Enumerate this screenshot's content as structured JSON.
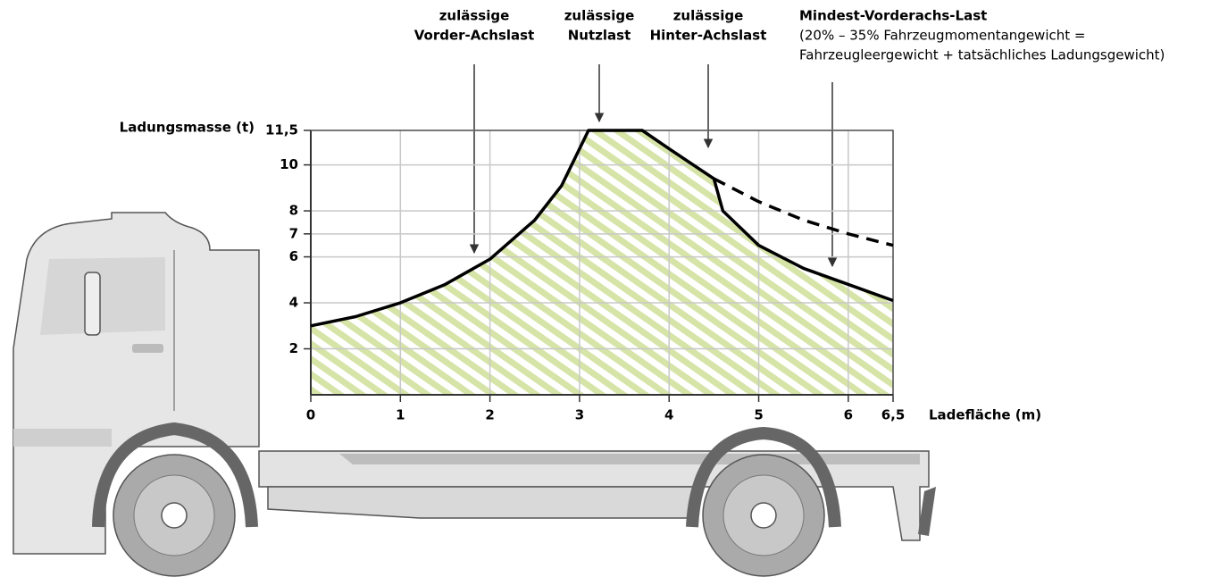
{
  "chart_data": {
    "type": "line",
    "x_label": "Ladefläche (m)",
    "y_label": "Ladungsmasse (t)",
    "xlim": [
      0,
      6.5
    ],
    "ylim": [
      0,
      11.5
    ],
    "xticks": [
      0,
      1,
      2,
      3,
      4,
      5,
      6,
      {
        "value": 6.5,
        "label": "6,5"
      }
    ],
    "yticks": [
      2,
      4,
      6,
      7,
      8,
      10,
      {
        "value": 11.5,
        "label": "11,5"
      }
    ],
    "grid": true,
    "fill_color": "#d6e4a8",
    "series": [
      {
        "color": "#000000",
        "style": "solid",
        "x": [
          0,
          0.5,
          1,
          1.5,
          2,
          2.5,
          2.8,
          3.1,
          3.7,
          4,
          4.5,
          4.6,
          5,
          5.5,
          6,
          6.5
        ],
        "values": [
          3,
          3.4,
          4,
          4.8,
          5.9,
          7.6,
          9.1,
          11.5,
          11.5,
          10.7,
          9.4,
          8,
          6.5,
          5.5,
          4.8,
          4.1
        ]
      },
      {
        "color": "#000000",
        "style": "dashed",
        "x": [
          4.5,
          5,
          5.5,
          6,
          6.5
        ],
        "values": [
          9.4,
          8.4,
          7.6,
          7,
          6.5
        ]
      }
    ],
    "annotations": [
      {
        "lines": [
          "zulässige",
          "Vorder-Achslast"
        ]
      },
      {
        "lines": [
          "zulässige",
          "Nutzlast"
        ]
      },
      {
        "lines": [
          "zulässige",
          "Hinter-Achslast"
        ]
      },
      {
        "lines": [
          "Mindest-Vorderachs-Last",
          "(20% – 35% Fahrzeugmomentangewicht =",
          "Fahrzeugleergewicht + tatsächliches Ladungsgewicht)"
        ]
      }
    ]
  }
}
